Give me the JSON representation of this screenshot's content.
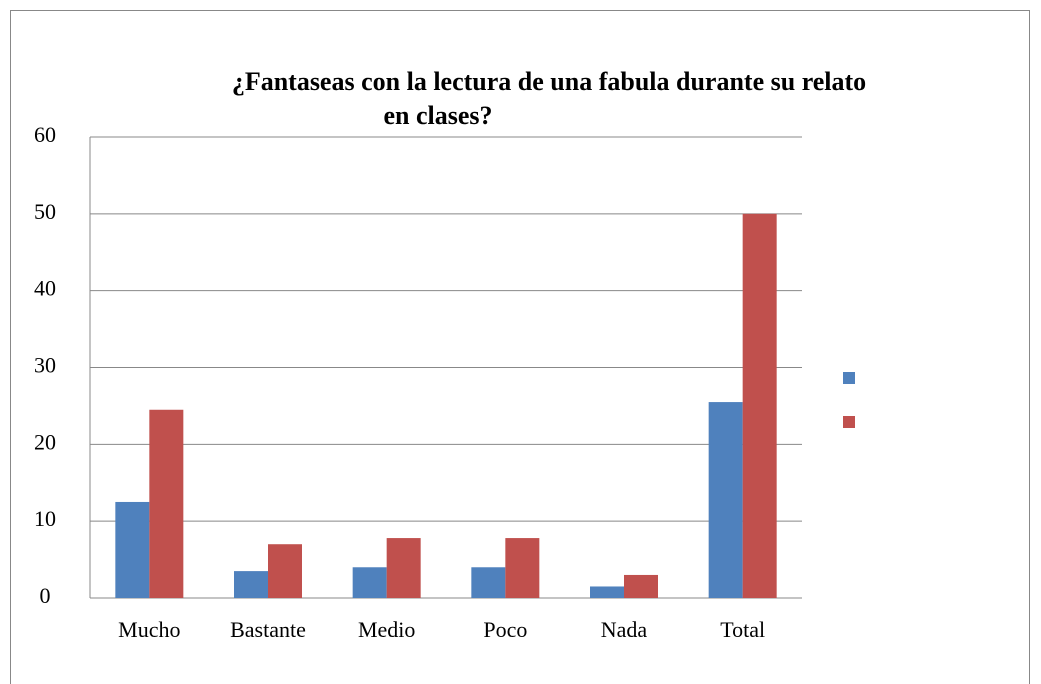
{
  "chart_data": {
    "type": "bar",
    "title": [
      "¿Fantaseas con la lectura de una fabula durante su relato",
      "en clases?"
    ],
    "categories": [
      "Mucho",
      "Bastante",
      "Medio",
      "Poco",
      "Nada",
      "Total"
    ],
    "series": [
      {
        "color": "#4f81bd",
        "values": [
          12.5,
          3.5,
          4,
          4,
          1.5,
          25.5
        ]
      },
      {
        "color": "#c0504d",
        "values": [
          24.5,
          7,
          7.8,
          7.8,
          3,
          50
        ]
      }
    ],
    "ylim": [
      0,
      60
    ],
    "yticks": [
      0,
      10,
      20,
      30,
      40,
      50,
      60
    ],
    "grid": true,
    "legend": "right"
  }
}
